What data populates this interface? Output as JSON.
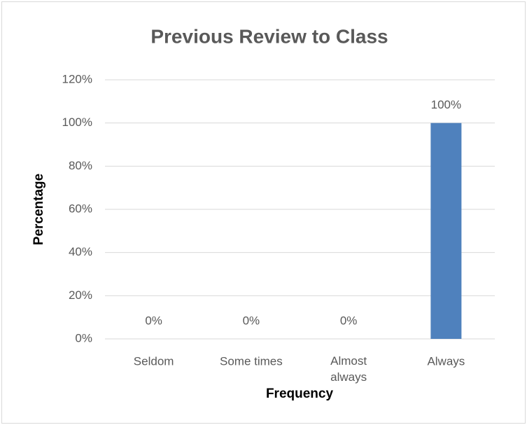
{
  "chart_data": {
    "type": "bar",
    "title": "Previous  Review to Class",
    "x_label": "Frequency",
    "y_label": "Percentage",
    "categories": [
      "Seldom",
      "Some times",
      "Almost always",
      "Always"
    ],
    "values": [
      0,
      0,
      0,
      100
    ],
    "value_labels": [
      "0%",
      "0%",
      "0%",
      "100%"
    ],
    "color": "#4f81bd",
    "ylim": [
      0,
      120
    ],
    "yticks": [
      {
        "value": 0,
        "label": "0%"
      },
      {
        "value": 20,
        "label": "20%"
      },
      {
        "value": 40,
        "label": "40%"
      },
      {
        "value": 60,
        "label": "60%"
      },
      {
        "value": 80,
        "label": "80%"
      },
      {
        "value": 100,
        "label": "100%"
      },
      {
        "value": 120,
        "label": "120%"
      }
    ],
    "grid": true
  }
}
